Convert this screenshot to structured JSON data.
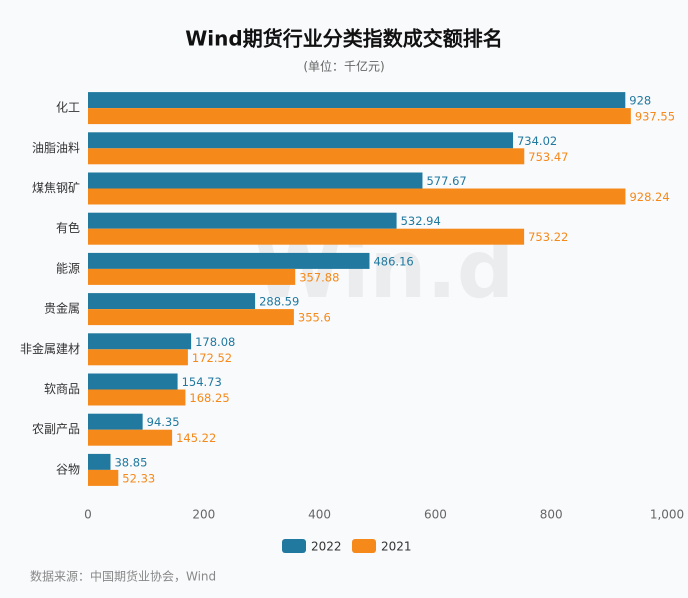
{
  "chart_data": {
    "type": "hbar",
    "title": "Wind期货行业分类指数成交额排名",
    "subtitle": "(单位：千亿元)",
    "source": "数据来源：中国期货业协会，Wind",
    "watermark": "Win.d",
    "categories": [
      "化工",
      "油脂油料",
      "煤焦钢矿",
      "有色",
      "能源",
      "贵金属",
      "非金属建材",
      "软商品",
      "农副产品",
      "谷物"
    ],
    "series": [
      {
        "name": "2022",
        "color": "#21799f",
        "values": [
          928,
          734.02,
          577.67,
          532.94,
          486.16,
          288.59,
          178.08,
          154.73,
          94.35,
          38.85
        ]
      },
      {
        "name": "2021",
        "color": "#f5891a",
        "values": [
          937.55,
          753.47,
          928.24,
          753.22,
          357.88,
          355.6,
          172.52,
          168.25,
          145.22,
          52.33
        ]
      }
    ],
    "xlim": [
      0,
      1000
    ],
    "xticks": [
      0,
      200,
      400,
      600,
      800,
      {
        "value": 1000,
        "label": "1,000"
      }
    ],
    "grid": false,
    "legend": "bottom"
  }
}
